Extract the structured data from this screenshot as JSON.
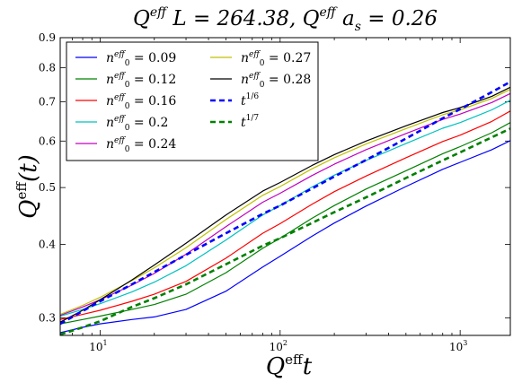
{
  "chart_data": {
    "type": "line",
    "title": "Q^eff L = 264.38, Q^eff a_s = 0.26",
    "xlabel": "Q^eff t",
    "ylabel": "Q^eff(t)",
    "xscale": "log",
    "yscale": "log",
    "xlim": [
      6,
      1900
    ],
    "ylim": [
      0.28,
      0.9
    ],
    "xticks": [
      {
        "value": 10,
        "label": "10^1"
      },
      {
        "value": 100,
        "label": "10^2"
      },
      {
        "value": 1000,
        "label": "10^3"
      }
    ],
    "yticks": [
      0.3,
      0.4,
      0.5,
      0.6,
      0.7,
      0.8,
      0.9
    ],
    "grid": false,
    "legend_position": "top-left",
    "legend_columns": 2,
    "x": [
      6,
      8,
      10,
      15,
      20,
      30,
      50,
      80,
      100,
      150,
      200,
      300,
      500,
      800,
      1000,
      1500,
      1900
    ],
    "series": [
      {
        "name": "n_0^eff = 0.09",
        "color": "#0000ff",
        "style": "solid",
        "values": [
          0.283,
          0.289,
          0.293,
          0.298,
          0.301,
          0.31,
          0.333,
          0.366,
          0.382,
          0.413,
          0.435,
          0.465,
          0.502,
          0.537,
          0.552,
          0.58,
          0.601
        ]
      },
      {
        "name": "n_0^eff = 0.12",
        "color": "#008000",
        "style": "solid",
        "values": [
          0.293,
          0.298,
          0.302,
          0.31,
          0.316,
          0.329,
          0.358,
          0.394,
          0.41,
          0.443,
          0.466,
          0.497,
          0.534,
          0.571,
          0.587,
          0.62,
          0.645
        ]
      },
      {
        "name": "n_0^eff = 0.16",
        "color": "#ff0000",
        "style": "solid",
        "values": [
          0.298,
          0.304,
          0.309,
          0.32,
          0.329,
          0.346,
          0.379,
          0.418,
          0.434,
          0.468,
          0.492,
          0.523,
          0.562,
          0.599,
          0.614,
          0.648,
          0.675
        ]
      },
      {
        "name": "n_0^eff = 0.2",
        "color": "#00c0c0",
        "style": "solid",
        "values": [
          0.302,
          0.31,
          0.317,
          0.332,
          0.345,
          0.368,
          0.407,
          0.449,
          0.466,
          0.501,
          0.525,
          0.556,
          0.594,
          0.631,
          0.645,
          0.678,
          0.704
        ]
      },
      {
        "name": "n_0^eff = 0.24",
        "color": "#c000c0",
        "style": "solid",
        "values": [
          0.303,
          0.313,
          0.322,
          0.341,
          0.357,
          0.385,
          0.429,
          0.472,
          0.489,
          0.524,
          0.548,
          0.58,
          0.618,
          0.653,
          0.667,
          0.698,
          0.723
        ]
      },
      {
        "name": "n_0^eff = 0.27",
        "color": "#c0c000",
        "style": "solid",
        "values": [
          0.304,
          0.315,
          0.325,
          0.347,
          0.365,
          0.395,
          0.441,
          0.485,
          0.502,
          0.538,
          0.562,
          0.593,
          0.63,
          0.665,
          0.678,
          0.709,
          0.735
        ]
      },
      {
        "name": "n_0^eff = 0.28",
        "color": "#000000",
        "style": "solid",
        "values": [
          0.295,
          0.309,
          0.322,
          0.348,
          0.369,
          0.402,
          0.449,
          0.493,
          0.51,
          0.545,
          0.569,
          0.6,
          0.637,
          0.671,
          0.684,
          0.715,
          0.741
        ]
      },
      {
        "name": "t^(1/6)",
        "color": "#0000ff",
        "style": "dashed",
        "values": [
          0.293,
          0.308,
          0.32,
          0.342,
          0.359,
          0.384,
          0.418,
          0.451,
          0.466,
          0.498,
          0.522,
          0.557,
          0.606,
          0.656,
          0.68,
          0.727,
          0.757
        ]
      },
      {
        "name": "t^(1/7)",
        "color": "#008000",
        "style": "dashed",
        "values": [
          0.281,
          0.289,
          0.296,
          0.313,
          0.324,
          0.342,
          0.37,
          0.398,
          0.41,
          0.435,
          0.454,
          0.481,
          0.519,
          0.556,
          0.574,
          0.609,
          0.63
        ]
      }
    ]
  }
}
